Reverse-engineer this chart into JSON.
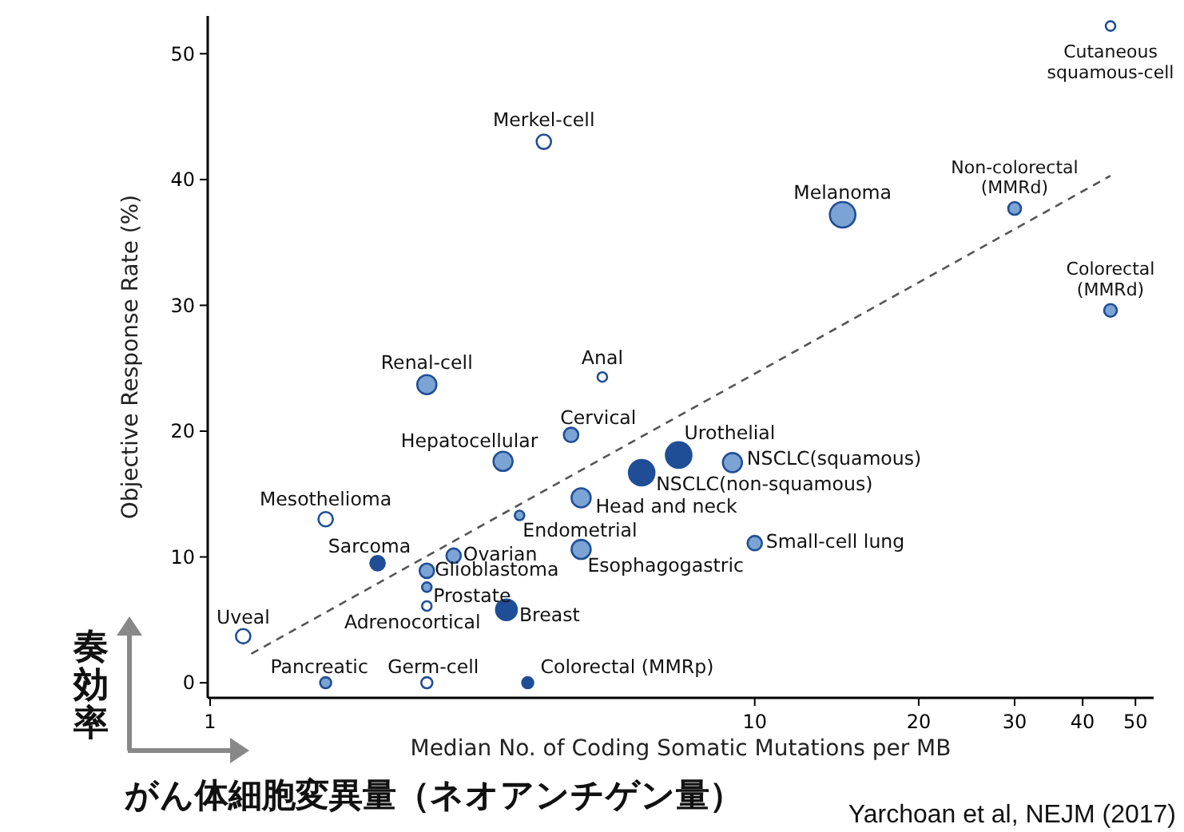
{
  "chart_data": {
    "type": "bubble",
    "xlabel": "Median No. of Coding Somatic Mutations per MB",
    "ylabel": "Objective Response Rate (%)",
    "log": "x",
    "xlim": [
      0.99,
      54
    ],
    "xticks": [
      1,
      10,
      20,
      30,
      40,
      50
    ],
    "ylim": [
      -1.2,
      53
    ],
    "yticks": [
      0,
      10,
      20,
      30,
      40,
      50
    ],
    "grid": false,
    "marker": "circle",
    "series": [
      {
        "x": [
          45,
          4.1,
          14.5,
          30,
          45,
          2.5,
          5.25,
          4.6,
          3.45,
          7.25,
          9.1,
          6.2,
          4.8,
          3.7,
          1.63,
          10,
          4.8,
          2.8,
          2.03,
          2.5,
          2.5,
          2.5,
          3.5,
          1.15,
          1.63,
          2.5,
          3.83
        ],
        "values": [
          52.2,
          43.0,
          37.2,
          37.7,
          29.6,
          23.7,
          24.3,
          19.7,
          17.6,
          18.1,
          17.5,
          16.7,
          14.7,
          13.3,
          13.0,
          11.1,
          10.6,
          10.1,
          9.5,
          8.9,
          7.6,
          6.1,
          5.8,
          3.7,
          0,
          0,
          0
        ],
        "sizes": [
          0.14,
          0.32,
          1,
          0.25,
          0.25,
          0.56,
          0.14,
          0.32,
          0.56,
          1,
          0.56,
          1,
          0.56,
          0.14,
          0.32,
          0.32,
          0.56,
          0.32,
          0.32,
          0.32,
          0.14,
          0.14,
          0.66,
          0.32,
          0.19,
          0.19,
          0.19
        ],
        "colors": [
          "#ffffff",
          "#ffffff",
          "#7ba3d4",
          "#7ba3d4",
          "#7ba3d4",
          "#7ba3d4",
          "#ffffff",
          "#7ba3d4",
          "#7ba3d4",
          "#1f4e96",
          "#7ba3d4",
          "#1f4e96",
          "#7ba3d4",
          "#7ba3d4",
          "#ffffff",
          "#7ba3d4",
          "#7ba3d4",
          "#7ba3d4",
          "#1f4e96",
          "#7ba3d4",
          "#7ba3d4",
          "#ffffff",
          "#1f4e96",
          "#ffffff",
          "#7ba3d4",
          "#ffffff",
          "#1f4e96"
        ],
        "color": "#1f4e96"
      },
      {
        "type": "line",
        "x": [
          1.19,
          45
        ],
        "values": [
          2.3,
          40.3
        ],
        "color": "#555555",
        "line_style": "dashed",
        "marker": "none"
      }
    ],
    "annotations": [
      {
        "text": "Cutaneous\nsquamous-cell",
        "x": 45,
        "y": 52.2
      },
      {
        "text": "Merkel-cell",
        "x": 4.1,
        "y": 43.0
      },
      {
        "text": "Melanoma",
        "x": 14.5,
        "y": 37.2
      },
      {
        "text": "Non-colorectal\n(MMRd)",
        "x": 30,
        "y": 37.7
      },
      {
        "text": "Colorectal\n(MMRd)",
        "x": 45,
        "y": 29.6
      },
      {
        "text": "Renal-cell",
        "x": 2.5,
        "y": 23.7
      },
      {
        "text": "Anal",
        "x": 5.25,
        "y": 24.3
      },
      {
        "text": "Cervical",
        "x": 4.6,
        "y": 19.7
      },
      {
        "text": "Hepatocellular",
        "x": 3.45,
        "y": 17.6
      },
      {
        "text": "Urothelial",
        "x": 7.25,
        "y": 18.1
      },
      {
        "text": "NSCLC(squamous)",
        "x": 9.1,
        "y": 17.5
      },
      {
        "text": "NSCLC(non-squamous)",
        "x": 6.2,
        "y": 16.7
      },
      {
        "text": "Head and neck",
        "x": 4.8,
        "y": 14.7
      },
      {
        "text": "Endometrial",
        "x": 3.7,
        "y": 13.3
      },
      {
        "text": "Mesothelioma",
        "x": 1.63,
        "y": 13.0
      },
      {
        "text": "Small-cell lung",
        "x": 10,
        "y": 11.1
      },
      {
        "text": "Esophagogastric",
        "x": 4.8,
        "y": 10.6
      },
      {
        "text": "Ovarian",
        "x": 2.8,
        "y": 10.1
      },
      {
        "text": "Sarcoma",
        "x": 2.03,
        "y": 9.5
      },
      {
        "text": "Glioblastoma",
        "x": 2.5,
        "y": 8.9
      },
      {
        "text": "Prostate",
        "x": 2.5,
        "y": 7.6
      },
      {
        "text": "Adrenocortical",
        "x": 2.5,
        "y": 6.1
      },
      {
        "text": "Breast",
        "x": 3.5,
        "y": 5.8
      },
      {
        "text": "Uveal",
        "x": 1.15,
        "y": 3.7
      },
      {
        "text": "Pancreatic",
        "x": 1.63,
        "y": 0
      },
      {
        "text": "Germ-cell",
        "x": 2.5,
        "y": 0
      },
      {
        "text": "Colorectal (MMRp)",
        "x": 3.83,
        "y": 0
      },
      "奏効率",
      "がん体細胞変異量（ネオアンチゲン量）",
      "Yarchoan et al, NEJM (2017)"
    ]
  }
}
